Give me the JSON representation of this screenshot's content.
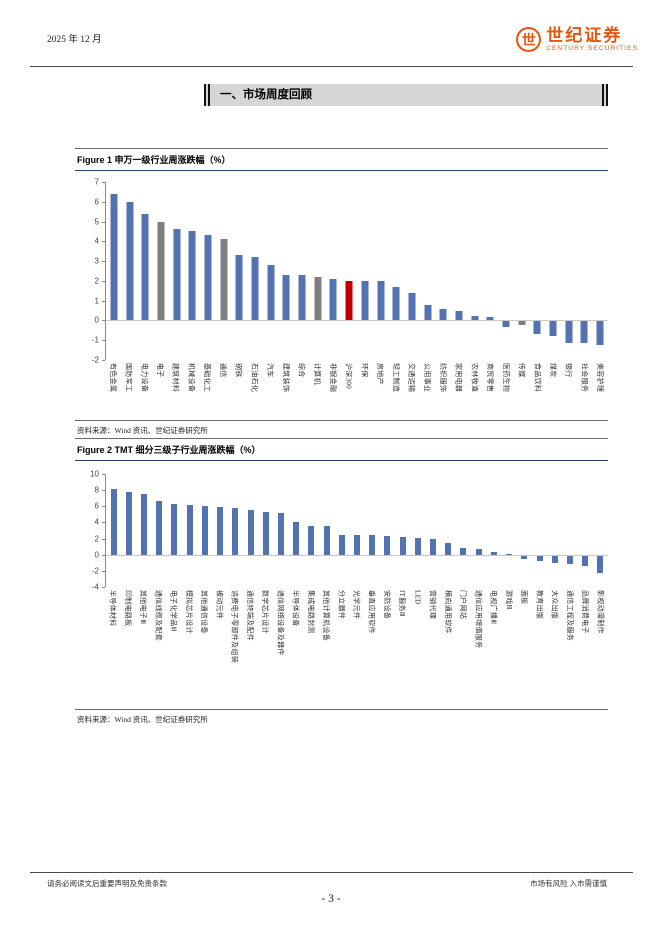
{
  "header": {
    "date": "2025 年 12 月",
    "brand": {
      "mark": "世",
      "name_cn": "世纪证券",
      "name_en": "CENTURY SECURITIES",
      "color": "#E4570F"
    }
  },
  "section": {
    "title": "一、市场周度回顾"
  },
  "palette": {
    "blue": "#5372B1",
    "gray": "#7F7F7F",
    "red": "#C00000"
  },
  "chart_data": [
    {
      "type": "bar",
      "title": "Figure 1 申万一级行业周涨跌幅（%）",
      "source": "资料来源：Wind 资讯、世纪证券研究所",
      "categories": [
        "有色金属",
        "国防军工",
        "电力设备",
        "电子",
        "建筑材料",
        "机械设备",
        "基础化工",
        "通信",
        "钢铁",
        "石油石化",
        "汽车",
        "建筑装饰",
        "综合",
        "计算机",
        "非银金融",
        "沪深300",
        "环保",
        "房地产",
        "轻工制造",
        "交通运输",
        "公用事业",
        "纺织服饰",
        "家用电器",
        "农林牧渔",
        "商贸零售",
        "医药生物",
        "传媒",
        "食品饮料",
        "煤炭",
        "银行",
        "社会服务",
        "美容护理"
      ],
      "values": [
        6.4,
        6.0,
        5.4,
        5.0,
        4.6,
        4.5,
        4.3,
        4.1,
        3.3,
        3.2,
        2.8,
        2.3,
        2.3,
        2.2,
        2.1,
        2.0,
        2.0,
        2.0,
        1.7,
        1.4,
        0.8,
        0.6,
        0.5,
        0.25,
        0.15,
        -0.3,
        -0.2,
        -0.65,
        -0.75,
        -1.1,
        -1.1,
        -1.2
      ],
      "bar_colors": [
        "blue",
        "blue",
        "blue",
        "gray",
        "blue",
        "blue",
        "blue",
        "gray",
        "blue",
        "blue",
        "blue",
        "blue",
        "blue",
        "gray",
        "blue",
        "red",
        "blue",
        "blue",
        "blue",
        "blue",
        "blue",
        "blue",
        "blue",
        "blue",
        "blue",
        "blue",
        "gray",
        "blue",
        "blue",
        "blue",
        "blue",
        "blue"
      ],
      "ylim": [
        -2,
        7
      ],
      "ytick_step": 1,
      "grid": false,
      "legend": null,
      "xlabel": "",
      "ylabel": ""
    },
    {
      "type": "bar",
      "title": "Figure 2 TMT 细分三级子行业周涨跌幅（%）",
      "source": "资料来源：Wind 资讯、世纪证券研究所",
      "categories": [
        "半导体材料",
        "印制电路板",
        "其他电子Ⅲ",
        "通信线缆及配套",
        "电子化学品Ⅲ",
        "模拟芯片设计",
        "其他通信设备",
        "被动元件",
        "消费电子零部件及组装",
        "通信终端及配件",
        "数字芯片设计",
        "通信网络设备及器件",
        "半导体设备",
        "集成电路封测",
        "其他计算机设备",
        "分立器件",
        "光学元件",
        "垂直应用软件",
        "安防设备",
        "IT服务Ⅲ",
        "LED",
        "营销代理",
        "横向通用软件",
        "门户网站",
        "通信应用增值服务",
        "电视广播Ⅲ",
        "游戏Ⅲ",
        "面板",
        "教育出版",
        "大众出版",
        "通信工程及服务",
        "品牌消费电子",
        "影视动漫制作"
      ],
      "values": [
        8.2,
        7.8,
        7.5,
        6.6,
        6.3,
        6.1,
        6.0,
        5.9,
        5.8,
        5.5,
        5.3,
        5.2,
        4.1,
        3.6,
        3.5,
        2.5,
        2.4,
        2.4,
        2.3,
        2.2,
        2.1,
        1.9,
        1.5,
        0.8,
        0.7,
        0.3,
        0.05,
        -0.45,
        -0.7,
        -0.9,
        -1.0,
        -1.3,
        -2.2
      ],
      "bar_colors": [
        "blue",
        "blue",
        "blue",
        "blue",
        "blue",
        "blue",
        "blue",
        "blue",
        "blue",
        "blue",
        "blue",
        "blue",
        "blue",
        "blue",
        "blue",
        "blue",
        "blue",
        "blue",
        "blue",
        "blue",
        "blue",
        "blue",
        "blue",
        "blue",
        "blue",
        "blue",
        "blue",
        "blue",
        "blue",
        "blue",
        "blue",
        "blue",
        "blue"
      ],
      "ylim": [
        -4,
        10
      ],
      "ytick_step": 2,
      "grid": false,
      "legend": null,
      "xlabel": "",
      "ylabel": ""
    }
  ],
  "footer": {
    "disclaimer": "请务必阅读文后重要声明及免责条款",
    "risk_note": "市场有风险 入市需谨慎",
    "page_number": "- 3 -"
  }
}
